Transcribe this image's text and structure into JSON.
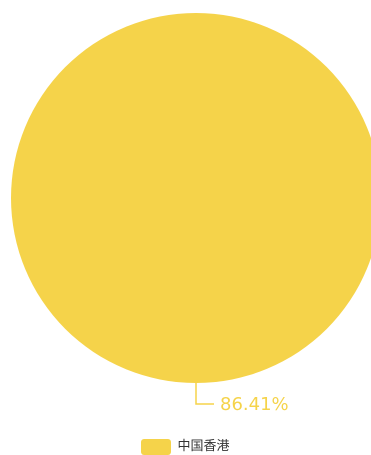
{
  "chart_data": {
    "type": "pie",
    "slices": [
      {
        "label": "中国香港",
        "percent_label": "86.41%",
        "color": "#F5D34A"
      }
    ],
    "legend_position": "bottom-center"
  }
}
